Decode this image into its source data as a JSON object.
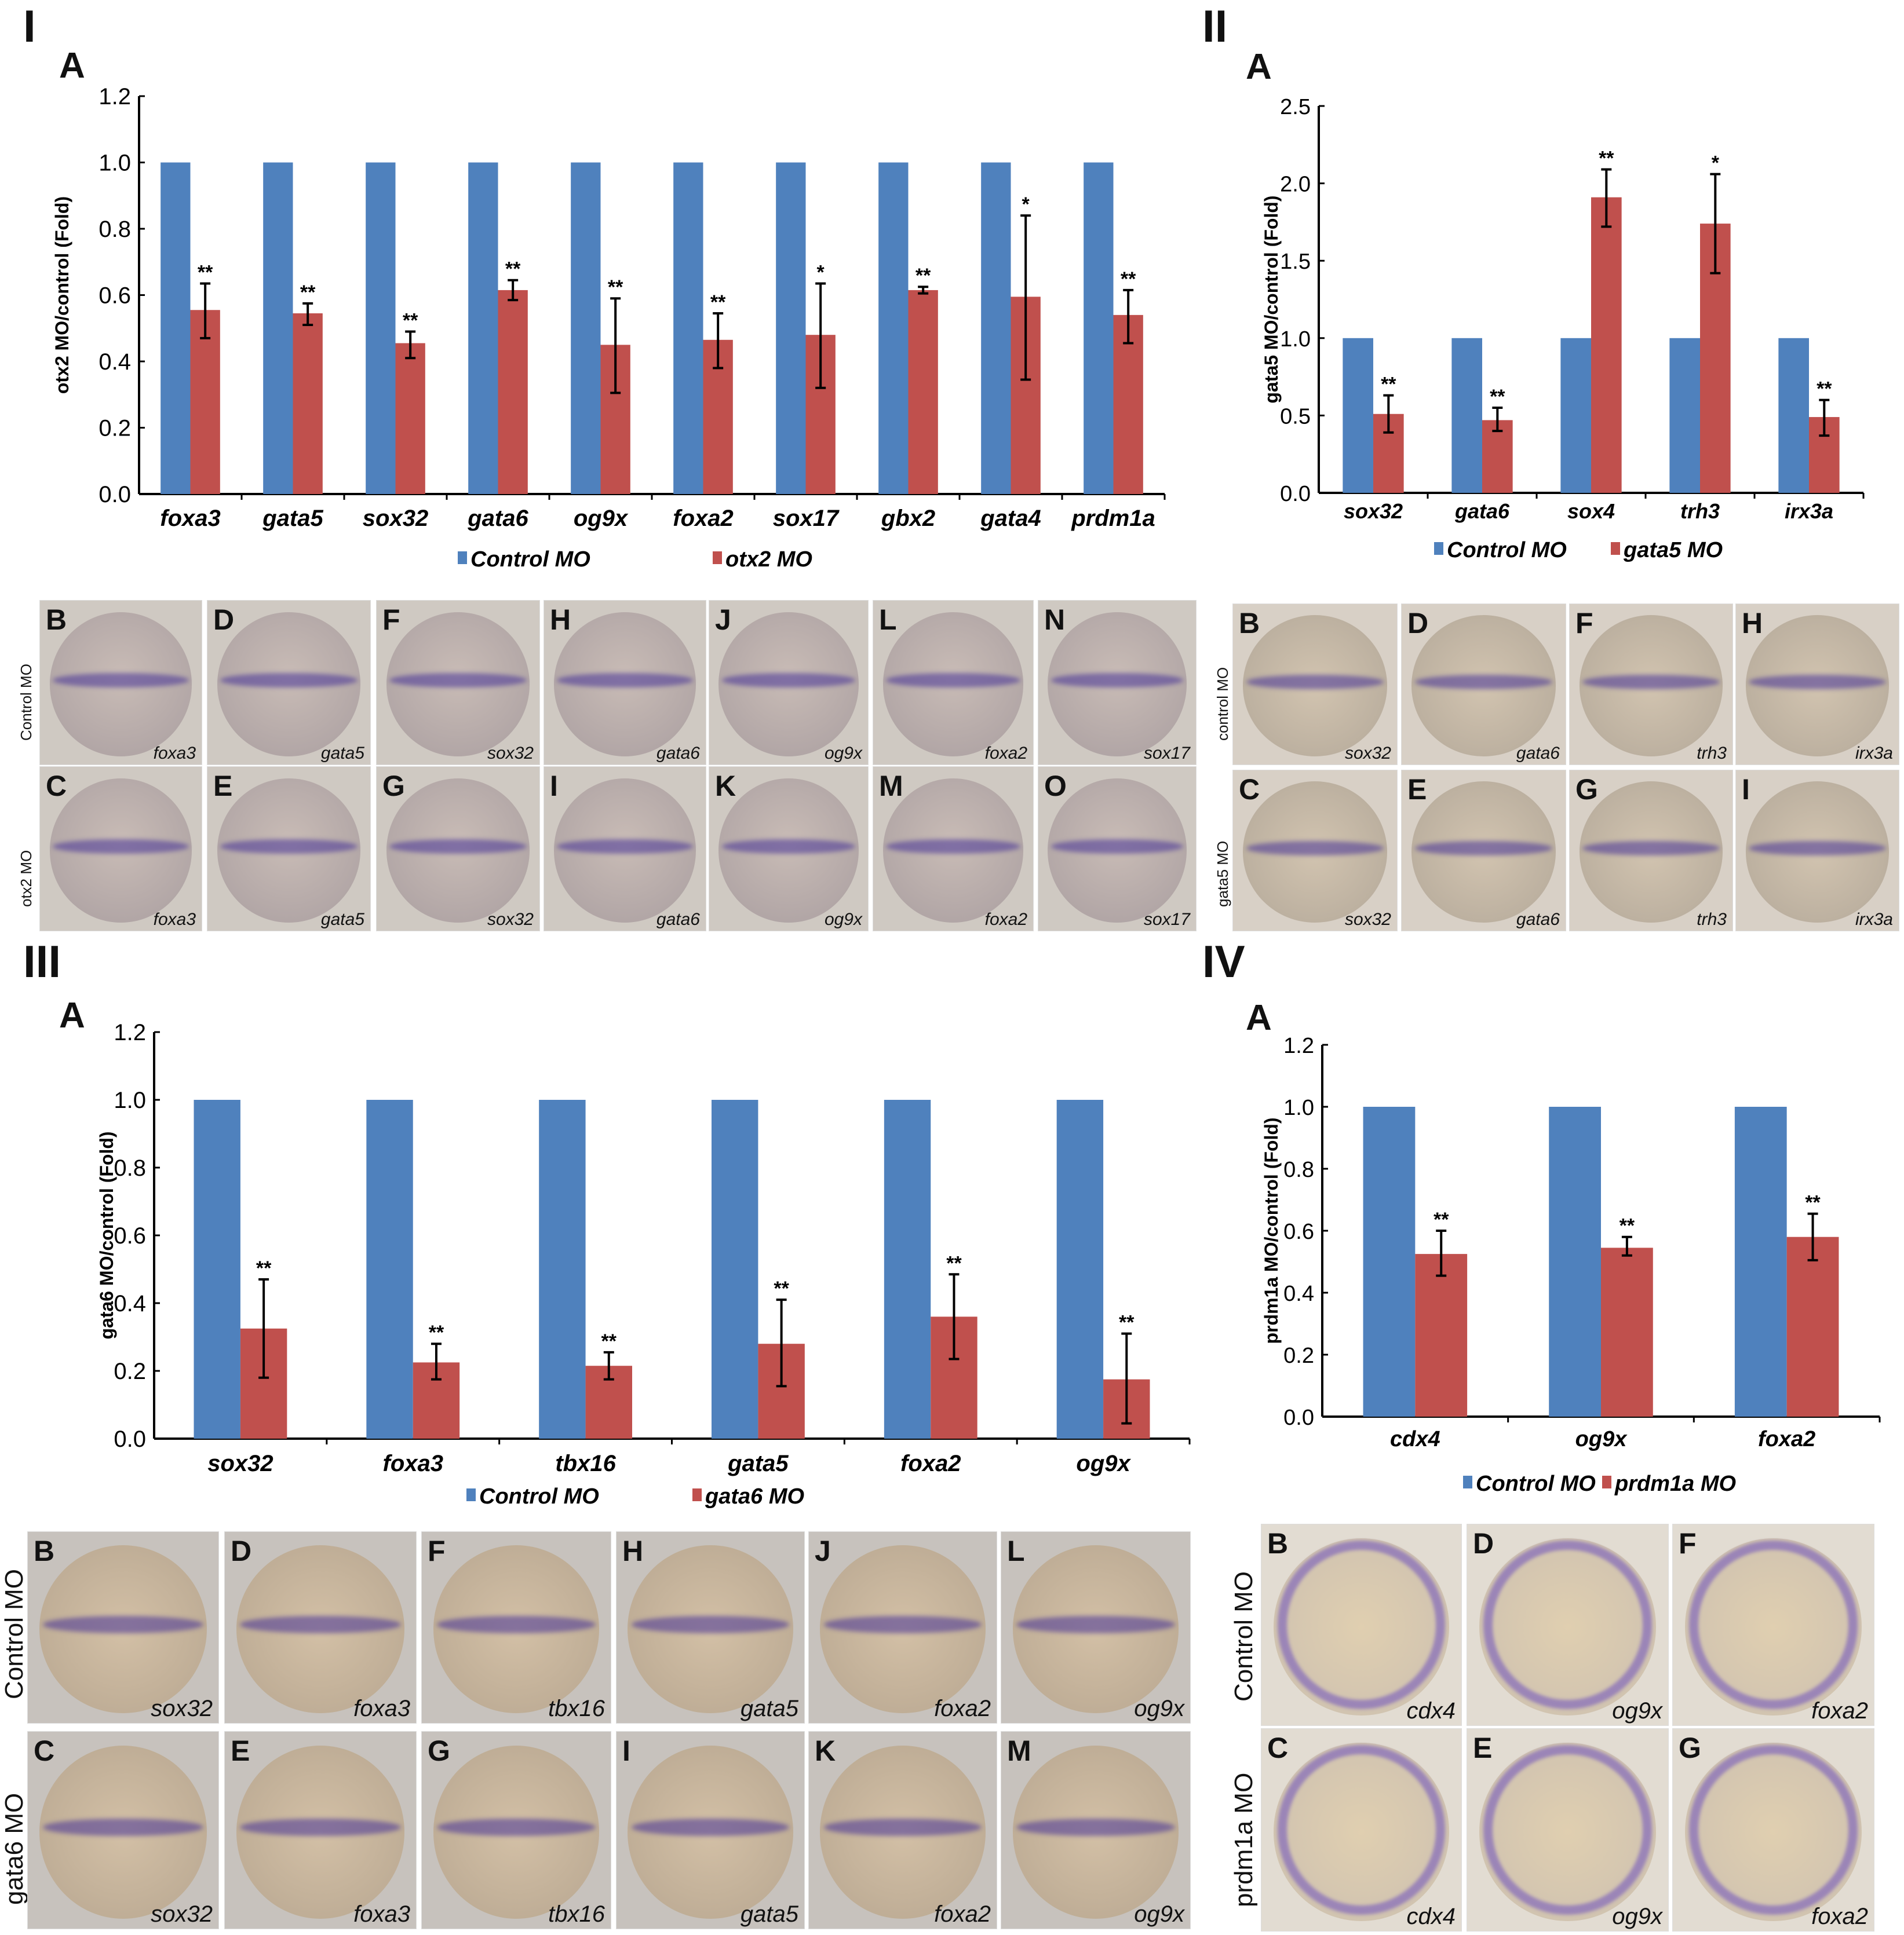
{
  "sections": [
    {
      "label": "I",
      "panel": "A"
    },
    {
      "label": "II",
      "panel": "A"
    },
    {
      "label": "III",
      "panel": "A"
    },
    {
      "label": "IV",
      "panel": "A"
    }
  ],
  "chart_data": [
    {
      "type": "bar",
      "ylabel": "otx2 MO/control (Fold)",
      "ylim": [
        0,
        1.2
      ],
      "yticks": [
        "0.0",
        "0.2",
        "0.4",
        "0.6",
        "0.8",
        "1.0",
        "1.2"
      ],
      "categories": [
        "foxa3",
        "gata5",
        "sox32",
        "gata6",
        "og9x",
        "foxa2",
        "sox17",
        "gbx2",
        "gata4",
        "prdm1a"
      ],
      "series": [
        {
          "name": "Control MO",
          "color": "#4f81bd",
          "values": [
            1,
            1,
            1,
            1,
            1,
            1,
            1,
            1,
            1,
            1
          ]
        },
        {
          "name": "otx2 MO",
          "color": "#c0504d",
          "values": [
            0.555,
            0.545,
            0.455,
            0.615,
            0.45,
            0.465,
            0.48,
            0.615,
            0.595,
            0.54
          ],
          "error_low": [
            0.47,
            0.51,
            0.41,
            0.585,
            0.305,
            0.38,
            0.32,
            0.605,
            0.345,
            0.455
          ],
          "error_high": [
            0.635,
            0.575,
            0.49,
            0.645,
            0.59,
            0.545,
            0.635,
            0.625,
            0.84,
            0.615
          ],
          "significance": [
            "**",
            "**",
            "**",
            "**",
            "**",
            "**",
            "*",
            "**",
            "*",
            "**"
          ]
        }
      ],
      "legend": "bottom"
    },
    {
      "type": "bar",
      "ylabel": "gata5 MO/control (Fold)",
      "ylim": [
        0,
        2.5
      ],
      "yticks": [
        "0.0",
        "0.5",
        "1.0",
        "1.5",
        "2.0",
        "2.5"
      ],
      "categories": [
        "sox32",
        "gata6",
        "sox4",
        "trh3",
        "irx3a"
      ],
      "series": [
        {
          "name": "Control MO",
          "color": "#4f81bd",
          "values": [
            1,
            1,
            1,
            1,
            1
          ]
        },
        {
          "name": "gata5 MO",
          "color": "#c0504d",
          "values": [
            0.51,
            0.47,
            1.91,
            1.74,
            0.49
          ],
          "error_low": [
            0.39,
            0.4,
            1.72,
            1.42,
            0.37
          ],
          "error_high": [
            0.63,
            0.55,
            2.09,
            2.06,
            0.6
          ],
          "significance": [
            "**",
            "**",
            "**",
            "*",
            "**"
          ]
        }
      ],
      "legend": "bottom"
    },
    {
      "type": "bar",
      "ylabel": "gata6 MO/control (Fold)",
      "ylim": [
        0,
        1.2
      ],
      "yticks": [
        "0.0",
        "0.2",
        "0.4",
        "0.6",
        "0.8",
        "1.0",
        "1.2"
      ],
      "categories": [
        "sox32",
        "foxa3",
        "tbx16",
        "gata5",
        "foxa2",
        "og9x"
      ],
      "series": [
        {
          "name": "Control MO",
          "color": "#4f81bd",
          "values": [
            1,
            1,
            1,
            1,
            1,
            1
          ]
        },
        {
          "name": "gata6 MO",
          "color": "#c0504d",
          "values": [
            0.325,
            0.225,
            0.215,
            0.28,
            0.36,
            0.175
          ],
          "error_low": [
            0.18,
            0.175,
            0.175,
            0.155,
            0.235,
            0.045
          ],
          "error_high": [
            0.47,
            0.28,
            0.255,
            0.41,
            0.485,
            0.31
          ],
          "significance": [
            "**",
            "**",
            "**",
            "**",
            "**",
            "**"
          ]
        }
      ],
      "legend": "bottom"
    },
    {
      "type": "bar",
      "ylabel": "prdm1a  MO/control (Fold)",
      "ylim": [
        0,
        1.2
      ],
      "yticks": [
        "0.0",
        "0.2",
        "0.4",
        "0.6",
        "0.8",
        "1.0",
        "1.2"
      ],
      "categories": [
        "cdx4",
        "og9x",
        "foxa2"
      ],
      "series": [
        {
          "name": "Control MO",
          "color": "#4f81bd",
          "values": [
            1,
            1,
            1
          ]
        },
        {
          "name": "prdm1a MO",
          "color": "#c0504d",
          "values": [
            0.525,
            0.545,
            0.58
          ],
          "error_low": [
            0.455,
            0.52,
            0.505
          ],
          "error_high": [
            0.6,
            0.58,
            0.655
          ],
          "significance": [
            "**",
            "**",
            "**"
          ]
        }
      ],
      "legend": "bottom"
    }
  ],
  "photos": [
    {
      "row_labels": [
        "Control MO",
        "otx2 MO"
      ],
      "top": [
        "B",
        "D",
        "F",
        "H",
        "J",
        "L",
        "N"
      ],
      "bottom": [
        "C",
        "E",
        "G",
        "I",
        "K",
        "M",
        "O"
      ],
      "genes": [
        "foxa3",
        "gata5",
        "sox32",
        "gata6",
        "og9x",
        "foxa2",
        "sox17"
      ]
    },
    {
      "row_labels": [
        "control MO",
        "gata5 MO"
      ],
      "top": [
        "B",
        "D",
        "F",
        "H"
      ],
      "bottom": [
        "C",
        "E",
        "G",
        "I"
      ],
      "genes": [
        "sox32",
        "gata6",
        "trh3",
        "irx3a"
      ]
    },
    {
      "row_labels": [
        "Control MO",
        "gata6 MO"
      ],
      "top": [
        "B",
        "D",
        "F",
        "H",
        "J",
        "L"
      ],
      "bottom": [
        "C",
        "E",
        "G",
        "I",
        "K",
        "M"
      ],
      "genes": [
        "sox32",
        "foxa3",
        "tbx16",
        "gata5",
        "foxa2",
        "og9x"
      ]
    },
    {
      "row_labels": [
        "Control MO",
        "prdm1a MO"
      ],
      "top": [
        "B",
        "D",
        "F"
      ],
      "bottom": [
        "C",
        "E",
        "G"
      ],
      "genes": [
        "cdx4",
        "og9x",
        "foxa2"
      ]
    }
  ]
}
